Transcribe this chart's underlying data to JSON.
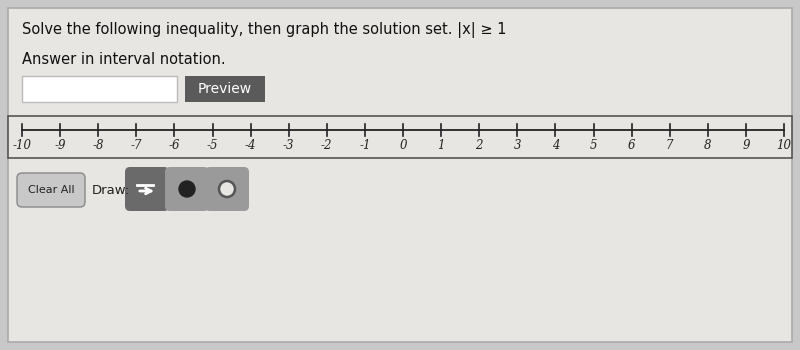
{
  "bg_color": "#c8c8c8",
  "inner_bg": "#e8e6e2",
  "title_text": "Solve the following inequality, then graph the solution set. |x| ≥ 1",
  "subtitle_text": "Answer in interval notation.",
  "preview_button_text": "Preview",
  "preview_button_color": "#5a5a5a",
  "preview_button_text_color": "#ffffff",
  "input_box_color": "#ffffff",
  "input_box_border": "#bbbbbb",
  "number_line_min": -10,
  "number_line_max": 10,
  "number_line_bg": "#e8e6e2",
  "number_line_border": "#555555",
  "tick_color": "#222222",
  "label_color": "#222222",
  "clear_all_text": "Clear All",
  "draw_text": "Draw:",
  "clear_btn_bg": "#c8c8c8",
  "clear_btn_border": "#888888",
  "arrow_btn_color": "#6a6a6a",
  "dot_btn_color": "#9a9a9a",
  "filled_dot_color": "#222222",
  "open_dot_color": "#e8e6e2",
  "open_dot_border": "#555555"
}
